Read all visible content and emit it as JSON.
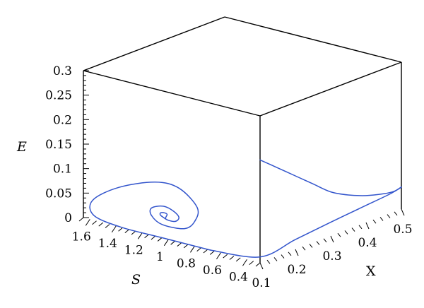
{
  "chart_data": {
    "type": "line3d",
    "axes": {
      "x": {
        "label": "X",
        "range": [
          0.1,
          0.5
        ],
        "ticks": [
          "0.1",
          "0.2",
          "0.3",
          "0.4",
          "0.5"
        ]
      },
      "s": {
        "label": "S",
        "range": [
          0.3,
          1.65
        ],
        "ticks": [
          "1.6",
          "1.4",
          "1.2",
          "1",
          "0.8",
          "0.6",
          "0.4"
        ]
      },
      "e": {
        "label": "E",
        "range": [
          0,
          0.3
        ],
        "ticks": [
          "0",
          "0.05",
          "0.1",
          "0.15",
          "0.2",
          "0.25",
          "0.3"
        ]
      }
    },
    "colors": {
      "curve": "#3355cc",
      "box": "#000000"
    },
    "series": [
      {
        "description": "spiral trajectory in E–S plane (X ≈ 0.1)",
        "points_s_e": [
          [
            1.02,
            0.04
          ],
          [
            1.06,
            0.045
          ],
          [
            1.06,
            0.05
          ],
          [
            1.03,
            0.052
          ],
          [
            1.01,
            0.05
          ],
          [
            1.02,
            0.04
          ],
          [
            0.95,
            0.04
          ],
          [
            0.92,
            0.05
          ],
          [
            0.96,
            0.06
          ],
          [
            1.04,
            0.065
          ],
          [
            1.13,
            0.055
          ],
          [
            1.13,
            0.04
          ],
          [
            1.05,
            0.027
          ],
          [
            0.88,
            0.03
          ],
          [
            0.8,
            0.05
          ],
          [
            0.78,
            0.08
          ],
          [
            0.92,
            0.11
          ],
          [
            1.1,
            0.11
          ],
          [
            1.38,
            0.08
          ],
          [
            1.58,
            0.04
          ],
          [
            1.57,
            0.01
          ],
          [
            1.36,
            0.0
          ],
          [
            1.06,
            0.0
          ],
          [
            0.68,
            0.0
          ]
        ]
      },
      {
        "description": "projected path rising along X (E small)",
        "points_x_e": [
          [
            0.1,
            0.012
          ],
          [
            0.2,
            0.02
          ],
          [
            0.3,
            0.028
          ],
          [
            0.4,
            0.035
          ],
          [
            0.47,
            0.04
          ],
          [
            0.5,
            0.045
          ]
        ]
      },
      {
        "description": "trajectory on back X–E face",
        "points_x_e": [
          [
            0.1,
            0.21
          ],
          [
            0.15,
            0.18
          ],
          [
            0.2,
            0.15
          ],
          [
            0.25,
            0.12
          ],
          [
            0.3,
            0.09
          ],
          [
            0.35,
            0.07
          ],
          [
            0.4,
            0.055
          ],
          [
            0.45,
            0.045
          ],
          [
            0.48,
            0.042
          ],
          [
            0.5,
            0.045
          ]
        ]
      }
    ]
  }
}
